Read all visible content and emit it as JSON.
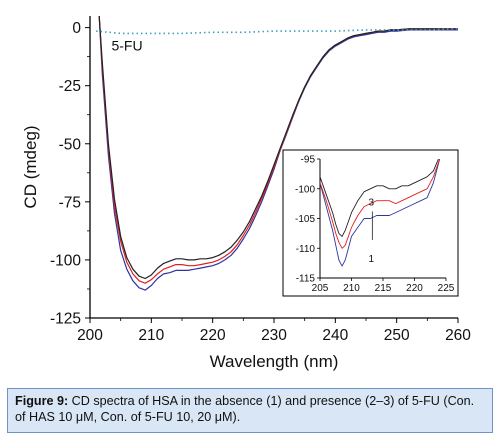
{
  "chart_data": [
    {
      "type": "line",
      "xlabel": "Wavelength (nm)",
      "ylabel": "CD (mdeg)",
      "xlim": [
        200,
        260
      ],
      "ylim": [
        -125,
        5
      ],
      "xticks": [
        "200",
        "210",
        "220",
        "230",
        "240",
        "250",
        "260"
      ],
      "yticks": [
        "0",
        "-25",
        "-50",
        "-75",
        "-100",
        "-125"
      ],
      "grid": false,
      "annotations": [
        {
          "text": "5-FU"
        }
      ],
      "series": [
        {
          "name": "1",
          "color": "#2c35a0",
          "style": "solid",
          "x": [
            201.5,
            202,
            203,
            204,
            205,
            206,
            207,
            208,
            209,
            210,
            211,
            212,
            213,
            214,
            215,
            216,
            217,
            218,
            219,
            220,
            221,
            222,
            223,
            224,
            225,
            226,
            227,
            228,
            229,
            230,
            231,
            232,
            233,
            234,
            235,
            236,
            237,
            238,
            239,
            240,
            241,
            242,
            243,
            244,
            245,
            246,
            247,
            248,
            249,
            250,
            252,
            254,
            256,
            258,
            260
          ],
          "y": [
            5,
            -20,
            -55,
            -80,
            -96,
            -104,
            -109,
            -112,
            -113,
            -111,
            -108,
            -106,
            -105.5,
            -104.5,
            -104.5,
            -104.5,
            -104,
            -103.5,
            -103,
            -102.5,
            -101.5,
            -100,
            -98,
            -95,
            -91,
            -86.5,
            -81,
            -75,
            -68,
            -61,
            -53,
            -46,
            -39,
            -32,
            -26,
            -21,
            -17,
            -13,
            -10,
            -8,
            -6.5,
            -5,
            -4,
            -3.5,
            -3,
            -2.5,
            -2,
            -2,
            -1.5,
            -1.5,
            -1,
            -1,
            -1,
            -1,
            -1
          ]
        },
        {
          "name": "2",
          "color": "#e02020",
          "style": "solid",
          "x": [
            201.5,
            202,
            203,
            204,
            205,
            206,
            207,
            208,
            209,
            210,
            211,
            212,
            213,
            214,
            215,
            216,
            217,
            218,
            219,
            220,
            221,
            222,
            223,
            224,
            225,
            226,
            227,
            228,
            229,
            230,
            231,
            232,
            233,
            234,
            235,
            236,
            237,
            238,
            239,
            240,
            241,
            242,
            243,
            244,
            245,
            246,
            247,
            248,
            249,
            250,
            252,
            254,
            256,
            258,
            260
          ],
          "y": [
            5,
            -17,
            -52,
            -77,
            -92,
            -101,
            -106,
            -109,
            -110,
            -108.5,
            -106,
            -104,
            -103,
            -102,
            -102,
            -102.5,
            -102.5,
            -102,
            -101.5,
            -101,
            -100,
            -98.5,
            -96.5,
            -93.5,
            -89.5,
            -85,
            -79.5,
            -73.5,
            -67,
            -60,
            -52.5,
            -45.5,
            -38.5,
            -31.5,
            -25.5,
            -20.5,
            -16.5,
            -12.5,
            -9.5,
            -7.5,
            -6,
            -4.5,
            -3.5,
            -3,
            -2.5,
            -2,
            -1.5,
            -1.5,
            -1,
            -1,
            -0.5,
            -0.5,
            -0.5,
            -0.5,
            -0.5
          ]
        },
        {
          "name": "3",
          "color": "#222222",
          "style": "solid",
          "x": [
            201.5,
            202,
            203,
            204,
            205,
            206,
            207,
            208,
            209,
            210,
            211,
            212,
            213,
            214,
            215,
            216,
            217,
            218,
            219,
            220,
            221,
            222,
            223,
            224,
            225,
            226,
            227,
            228,
            229,
            230,
            231,
            232,
            233,
            234,
            235,
            236,
            237,
            238,
            239,
            240,
            241,
            242,
            243,
            244,
            245,
            246,
            247,
            248,
            249,
            250,
            252,
            254,
            256,
            258,
            260
          ],
          "y": [
            5,
            -15,
            -50,
            -74,
            -90,
            -99,
            -104,
            -107,
            -108,
            -106.5,
            -103.5,
            -101.5,
            -100.5,
            -99.5,
            -99.5,
            -100,
            -100,
            -99.5,
            -99.5,
            -99,
            -98,
            -96.5,
            -94.5,
            -91.5,
            -88,
            -83.5,
            -78,
            -72.5,
            -66,
            -59,
            -52,
            -45,
            -38,
            -31.5,
            -25.5,
            -20.5,
            -16.5,
            -12.5,
            -9.5,
            -7.5,
            -6,
            -4.5,
            -3.5,
            -3,
            -2.5,
            -2,
            -1.5,
            -1.5,
            -1,
            -1,
            -0.5,
            -0.5,
            -0.5,
            -0.5,
            -0.5
          ]
        },
        {
          "name": "5-FU",
          "color": "#3fa0c0",
          "style": "dotted",
          "x": [
            201,
            205,
            210,
            215,
            220,
            225,
            230,
            235,
            240,
            245,
            250,
            255,
            260
          ],
          "y": [
            -1.5,
            -2.5,
            -2.5,
            -2.5,
            -2,
            -2,
            -1.5,
            -1.5,
            -1.5,
            -1,
            -1,
            -1,
            -0.5
          ]
        }
      ]
    },
    {
      "type": "line",
      "inset": true,
      "xlim": [
        205,
        225
      ],
      "ylim": [
        -115,
        -95
      ],
      "xticks": [
        "205",
        "210",
        "215",
        "220",
        "225"
      ],
      "yticks": [
        "-95",
        "-100",
        "-105",
        "-110",
        "-115"
      ],
      "annotations": [
        {
          "text": "3"
        },
        {
          "text": "1"
        }
      ],
      "series": [
        {
          "name": "1",
          "color": "#2c35a0",
          "x": [
            205,
            206,
            207,
            207.5,
            208,
            208.5,
            209,
            209.5,
            210,
            211,
            212,
            213,
            214,
            215,
            216,
            217,
            218,
            219,
            220,
            221,
            222,
            223,
            224
          ],
          "y": [
            -99,
            -103,
            -107,
            -109.5,
            -112,
            -113,
            -112,
            -110,
            -108,
            -106.5,
            -105,
            -105,
            -104.5,
            -104.5,
            -104.5,
            -104,
            -103.5,
            -103,
            -102.5,
            -102,
            -101.5,
            -99,
            -95
          ]
        },
        {
          "name": "2",
          "color": "#e02020",
          "x": [
            205,
            206,
            207,
            207.5,
            208,
            208.5,
            209,
            209.5,
            210,
            211,
            212,
            213,
            214,
            215,
            216,
            217,
            218,
            219,
            220,
            221,
            222,
            223,
            224
          ],
          "y": [
            -99,
            -102,
            -105.5,
            -107.5,
            -109,
            -110,
            -109.5,
            -108,
            -106.5,
            -104.5,
            -103,
            -102.5,
            -102,
            -102,
            -102,
            -102.5,
            -102,
            -101.5,
            -101,
            -100.5,
            -100,
            -98,
            -95
          ]
        },
        {
          "name": "3",
          "color": "#222222",
          "x": [
            205,
            206,
            207,
            207.5,
            208,
            208.5,
            209,
            209.5,
            210,
            211,
            212,
            213,
            214,
            215,
            216,
            217,
            218,
            219,
            220,
            221,
            222,
            223,
            224
          ],
          "y": [
            -98,
            -101,
            -104,
            -106,
            -107.5,
            -108,
            -107,
            -105.5,
            -104,
            -102,
            -100.5,
            -100,
            -99.5,
            -99.5,
            -100,
            -100,
            -99.5,
            -99.5,
            -99,
            -98.5,
            -98,
            -97,
            -94.5
          ]
        }
      ]
    }
  ],
  "caption": {
    "label": "Figure 9:",
    "text": " CD spectra of HSA in the absence (1) and presence (2–3) of 5-FU (Con. of HAS 10 μM, Con. of 5-FU 10, 20 μM)."
  }
}
